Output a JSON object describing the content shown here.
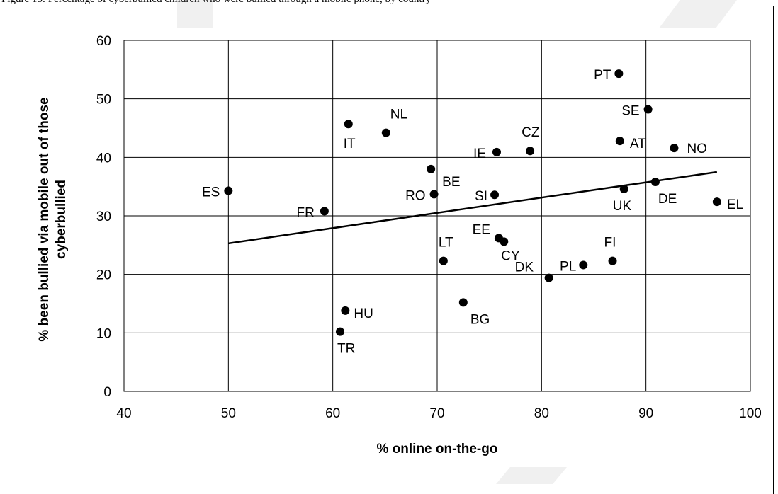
{
  "caption": "Figure 13: Percentage of cyberbullied children who were bullied through a mobile phone, by country",
  "chart_data": {
    "type": "scatter",
    "xlabel": "% online on-the-go",
    "ylabel": "% been bullied via mobile out of those cyberbullied",
    "xlim": [
      40,
      100
    ],
    "ylim": [
      0,
      60
    ],
    "xticks": [
      40,
      50,
      60,
      70,
      80,
      90,
      100
    ],
    "yticks": [
      0,
      10,
      20,
      30,
      40,
      50,
      60
    ],
    "grid": true,
    "points": [
      {
        "label": "ES",
        "x": 50.0,
        "y": 34.3
      },
      {
        "label": "FR",
        "x": 59.2,
        "y": 30.8
      },
      {
        "label": "TR",
        "x": 60.7,
        "y": 10.2
      },
      {
        "label": "HU",
        "x": 61.2,
        "y": 13.8
      },
      {
        "label": "IT",
        "x": 61.5,
        "y": 45.7
      },
      {
        "label": "NL",
        "x": 65.1,
        "y": 44.2
      },
      {
        "label": "BE",
        "x": 69.4,
        "y": 38.0
      },
      {
        "label": "RO",
        "x": 69.7,
        "y": 33.7
      },
      {
        "label": "LT",
        "x": 70.6,
        "y": 22.3
      },
      {
        "label": "BG",
        "x": 72.5,
        "y": 15.2
      },
      {
        "label": "SI",
        "x": 75.5,
        "y": 33.6
      },
      {
        "label": "IE",
        "x": 75.7,
        "y": 40.9
      },
      {
        "label": "EE",
        "x": 75.9,
        "y": 26.2
      },
      {
        "label": "CY",
        "x": 76.4,
        "y": 25.6
      },
      {
        "label": "CZ",
        "x": 78.9,
        "y": 41.1
      },
      {
        "label": "DK",
        "x": 80.7,
        "y": 19.4
      },
      {
        "label": "PL",
        "x": 84.0,
        "y": 21.6
      },
      {
        "label": "FI",
        "x": 86.8,
        "y": 22.3
      },
      {
        "label": "PT",
        "x": 87.4,
        "y": 54.3
      },
      {
        "label": "AT",
        "x": 87.5,
        "y": 42.8
      },
      {
        "label": "UK",
        "x": 87.9,
        "y": 34.6
      },
      {
        "label": "SE",
        "x": 90.2,
        "y": 48.2
      },
      {
        "label": "DE",
        "x": 90.9,
        "y": 35.8
      },
      {
        "label": "NO",
        "x": 92.7,
        "y": 41.6
      },
      {
        "label": "EL",
        "x": 96.8,
        "y": 32.4
      }
    ],
    "trendline": {
      "x": [
        50,
        96.8
      ],
      "y": [
        25.3,
        37.5
      ]
    }
  }
}
